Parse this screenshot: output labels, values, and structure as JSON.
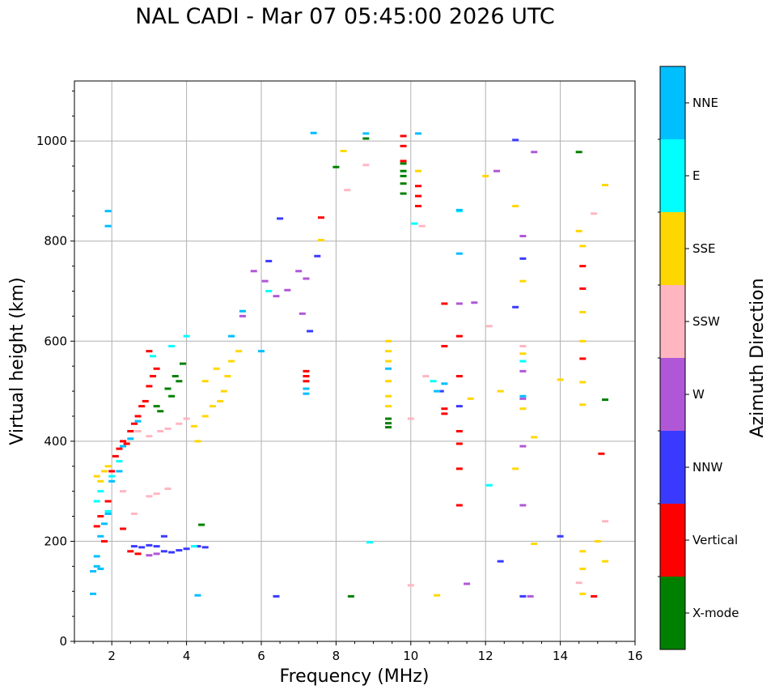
{
  "chart_data": {
    "type": "scatter",
    "title": "NAL CADI - Mar 07 05:45:00 2026 UTC",
    "xlabel": "Frequency (MHz)",
    "ylabel": "Virtual height (km)",
    "xlim": [
      1,
      16
    ],
    "ylim": [
      0,
      1120
    ],
    "xticks": [
      2,
      4,
      6,
      8,
      10,
      12,
      14,
      16
    ],
    "yticks": [
      0,
      200,
      400,
      600,
      800,
      1000
    ],
    "grid": true,
    "colorbar": {
      "label": "Azimuth Direction",
      "categories": [
        {
          "name": "X-mode",
          "color": "#008000"
        },
        {
          "name": "Vertical",
          "color": "#ff0000"
        },
        {
          "name": "NNW",
          "color": "#3a3aff"
        },
        {
          "name": "W",
          "color": "#b057d8"
        },
        {
          "name": "SSW",
          "color": "#ffb6c1"
        },
        {
          "name": "SSE",
          "color": "#ffd700"
        },
        {
          "name": "E",
          "color": "#00ffff"
        },
        {
          "name": "NNE",
          "color": "#00bfff"
        }
      ]
    },
    "series": [
      {
        "name": "X-mode",
        "points": [
          [
            3.3,
            460
          ],
          [
            3.6,
            490
          ],
          [
            3.7,
            530
          ],
          [
            3.5,
            505
          ],
          [
            3.9,
            555
          ],
          [
            3.8,
            520
          ],
          [
            3.2,
            470
          ],
          [
            4.4,
            233
          ],
          [
            8.0,
            948
          ],
          [
            8.4,
            90
          ],
          [
            8.8,
            1005
          ],
          [
            9.4,
            445
          ],
          [
            9.4,
            436
          ],
          [
            9.4,
            428
          ],
          [
            9.8,
            930
          ],
          [
            9.8,
            940
          ],
          [
            9.8,
            915
          ],
          [
            9.8,
            955
          ],
          [
            9.8,
            895
          ],
          [
            14.5,
            978
          ],
          [
            15.2,
            483
          ]
        ]
      },
      {
        "name": "Vertical",
        "points": [
          [
            1.6,
            230
          ],
          [
            1.7,
            250
          ],
          [
            1.8,
            200
          ],
          [
            1.9,
            280
          ],
          [
            2.0,
            340
          ],
          [
            2.1,
            370
          ],
          [
            2.2,
            385
          ],
          [
            2.3,
            400
          ],
          [
            2.4,
            395
          ],
          [
            2.5,
            420
          ],
          [
            2.6,
            435
          ],
          [
            2.7,
            450
          ],
          [
            2.8,
            470
          ],
          [
            2.9,
            480
          ],
          [
            3.0,
            510
          ],
          [
            3.1,
            530
          ],
          [
            3.2,
            545
          ],
          [
            3.0,
            580
          ],
          [
            2.3,
            225
          ],
          [
            2.5,
            180
          ],
          [
            2.7,
            175
          ],
          [
            7.2,
            540
          ],
          [
            7.2,
            530
          ],
          [
            7.2,
            520
          ],
          [
            9.8,
            1010
          ],
          [
            9.8,
            990
          ],
          [
            9.8,
            960
          ],
          [
            10.2,
            910
          ],
          [
            10.2,
            870
          ],
          [
            10.2,
            890
          ],
          [
            10.9,
            675
          ],
          [
            10.9,
            590
          ],
          [
            10.9,
            465
          ],
          [
            10.9,
            455
          ],
          [
            11.3,
            610
          ],
          [
            11.3,
            530
          ],
          [
            11.3,
            420
          ],
          [
            11.3,
            395
          ],
          [
            11.3,
            345
          ],
          [
            11.3,
            272
          ],
          [
            14.6,
            750
          ],
          [
            14.6,
            705
          ],
          [
            14.6,
            565
          ],
          [
            15.1,
            375
          ],
          [
            14.9,
            90
          ],
          [
            7.6,
            847
          ]
        ]
      },
      {
        "name": "NNW",
        "points": [
          [
            2.6,
            190
          ],
          [
            2.8,
            188
          ],
          [
            3.0,
            192
          ],
          [
            3.2,
            190
          ],
          [
            3.4,
            180
          ],
          [
            3.6,
            178
          ],
          [
            3.8,
            182
          ],
          [
            4.0,
            185
          ],
          [
            4.3,
            190
          ],
          [
            4.5,
            188
          ],
          [
            3.4,
            210
          ],
          [
            6.4,
            90
          ],
          [
            6.5,
            845
          ],
          [
            6.2,
            760
          ],
          [
            7.3,
            620
          ],
          [
            7.5,
            770
          ],
          [
            10.8,
            500
          ],
          [
            11.3,
            470
          ],
          [
            12.4,
            160
          ],
          [
            12.8,
            1002
          ],
          [
            12.8,
            668
          ],
          [
            13.0,
            765
          ],
          [
            13.0,
            90
          ],
          [
            14.0,
            210
          ]
        ]
      },
      {
        "name": "W",
        "points": [
          [
            3.0,
            172
          ],
          [
            3.2,
            175
          ],
          [
            5.8,
            740
          ],
          [
            5.5,
            650
          ],
          [
            6.1,
            720
          ],
          [
            6.4,
            690
          ],
          [
            6.7,
            702
          ],
          [
            7.0,
            740
          ],
          [
            7.2,
            725
          ],
          [
            7.1,
            655
          ],
          [
            11.3,
            675
          ],
          [
            11.7,
            677
          ],
          [
            11.5,
            115
          ],
          [
            12.3,
            940
          ],
          [
            13.0,
            810
          ],
          [
            13.0,
            540
          ],
          [
            13.0,
            485
          ],
          [
            13.0,
            390
          ],
          [
            13.0,
            272
          ],
          [
            13.2,
            90
          ],
          [
            13.3,
            978
          ]
        ]
      },
      {
        "name": "SSW",
        "points": [
          [
            2.7,
            420
          ],
          [
            3.0,
            410
          ],
          [
            3.3,
            420
          ],
          [
            3.5,
            425
          ],
          [
            3.8,
            435
          ],
          [
            4.0,
            445
          ],
          [
            3.2,
            295
          ],
          [
            3.0,
            290
          ],
          [
            3.5,
            305
          ],
          [
            2.3,
            300
          ],
          [
            2.6,
            255
          ],
          [
            8.3,
            902
          ],
          [
            8.8,
            952
          ],
          [
            10.0,
            445
          ],
          [
            10.0,
            112
          ],
          [
            10.3,
            830
          ],
          [
            10.4,
            530
          ],
          [
            12.1,
            630
          ],
          [
            13.0,
            590
          ],
          [
            14.5,
            117
          ],
          [
            14.9,
            855
          ],
          [
            15.2,
            240
          ]
        ]
      },
      {
        "name": "SSE",
        "points": [
          [
            1.6,
            330
          ],
          [
            1.7,
            320
          ],
          [
            1.8,
            340
          ],
          [
            1.9,
            350
          ],
          [
            4.2,
            430
          ],
          [
            4.5,
            450
          ],
          [
            4.7,
            470
          ],
          [
            4.9,
            480
          ],
          [
            5.0,
            500
          ],
          [
            5.1,
            530
          ],
          [
            5.2,
            560
          ],
          [
            4.5,
            520
          ],
          [
            4.8,
            545
          ],
          [
            5.4,
            580
          ],
          [
            4.3,
            400
          ],
          [
            8.2,
            980
          ],
          [
            9.4,
            600
          ],
          [
            9.4,
            580
          ],
          [
            9.4,
            560
          ],
          [
            9.4,
            520
          ],
          [
            9.4,
            490
          ],
          [
            9.4,
            470
          ],
          [
            10.2,
            940
          ],
          [
            10.7,
            92
          ],
          [
            11.6,
            485
          ],
          [
            12.0,
            930
          ],
          [
            12.4,
            500
          ],
          [
            12.8,
            345
          ],
          [
            12.8,
            870
          ],
          [
            13.0,
            720
          ],
          [
            13.0,
            575
          ],
          [
            13.0,
            465
          ],
          [
            13.3,
            408
          ],
          [
            13.3,
            195
          ],
          [
            14.0,
            523
          ],
          [
            14.5,
            820
          ],
          [
            14.6,
            790
          ],
          [
            14.6,
            658
          ],
          [
            14.6,
            600
          ],
          [
            14.6,
            518
          ],
          [
            14.6,
            473
          ],
          [
            14.6,
            180
          ],
          [
            14.6,
            145
          ],
          [
            14.6,
            95
          ],
          [
            15.0,
            200
          ],
          [
            15.2,
            912
          ],
          [
            15.2,
            160
          ],
          [
            7.6,
            802
          ]
        ]
      },
      {
        "name": "E",
        "points": [
          [
            1.6,
            280
          ],
          [
            1.7,
            300
          ],
          [
            1.9,
            260
          ],
          [
            2.0,
            330
          ],
          [
            2.2,
            360
          ],
          [
            3.1,
            570
          ],
          [
            3.6,
            590
          ],
          [
            4.0,
            610
          ],
          [
            4.2,
            190
          ],
          [
            6.2,
            700
          ],
          [
            8.9,
            198
          ],
          [
            10.1,
            835
          ],
          [
            10.6,
            520
          ],
          [
            11.3,
            860
          ],
          [
            13.0,
            560
          ],
          [
            12.1,
            312
          ]
        ]
      },
      {
        "name": "NNE",
        "points": [
          [
            1.5,
            140
          ],
          [
            1.6,
            150
          ],
          [
            1.7,
            145
          ],
          [
            1.6,
            170
          ],
          [
            1.7,
            210
          ],
          [
            1.8,
            235
          ],
          [
            1.9,
            255
          ],
          [
            2.0,
            320
          ],
          [
            2.2,
            340
          ],
          [
            2.3,
            390
          ],
          [
            2.5,
            405
          ],
          [
            2.7,
            440
          ],
          [
            1.5,
            95
          ],
          [
            1.9,
            860
          ],
          [
            1.9,
            830
          ],
          [
            4.3,
            92
          ],
          [
            5.2,
            610
          ],
          [
            5.5,
            660
          ],
          [
            6.0,
            580
          ],
          [
            7.2,
            505
          ],
          [
            7.2,
            495
          ],
          [
            7.4,
            1016
          ],
          [
            8.8,
            1015
          ],
          [
            9.4,
            545
          ],
          [
            10.2,
            1015
          ],
          [
            10.7,
            500
          ],
          [
            10.9,
            515
          ],
          [
            11.3,
            775
          ],
          [
            11.3,
            862
          ],
          [
            13.0,
            490
          ]
        ]
      }
    ]
  }
}
